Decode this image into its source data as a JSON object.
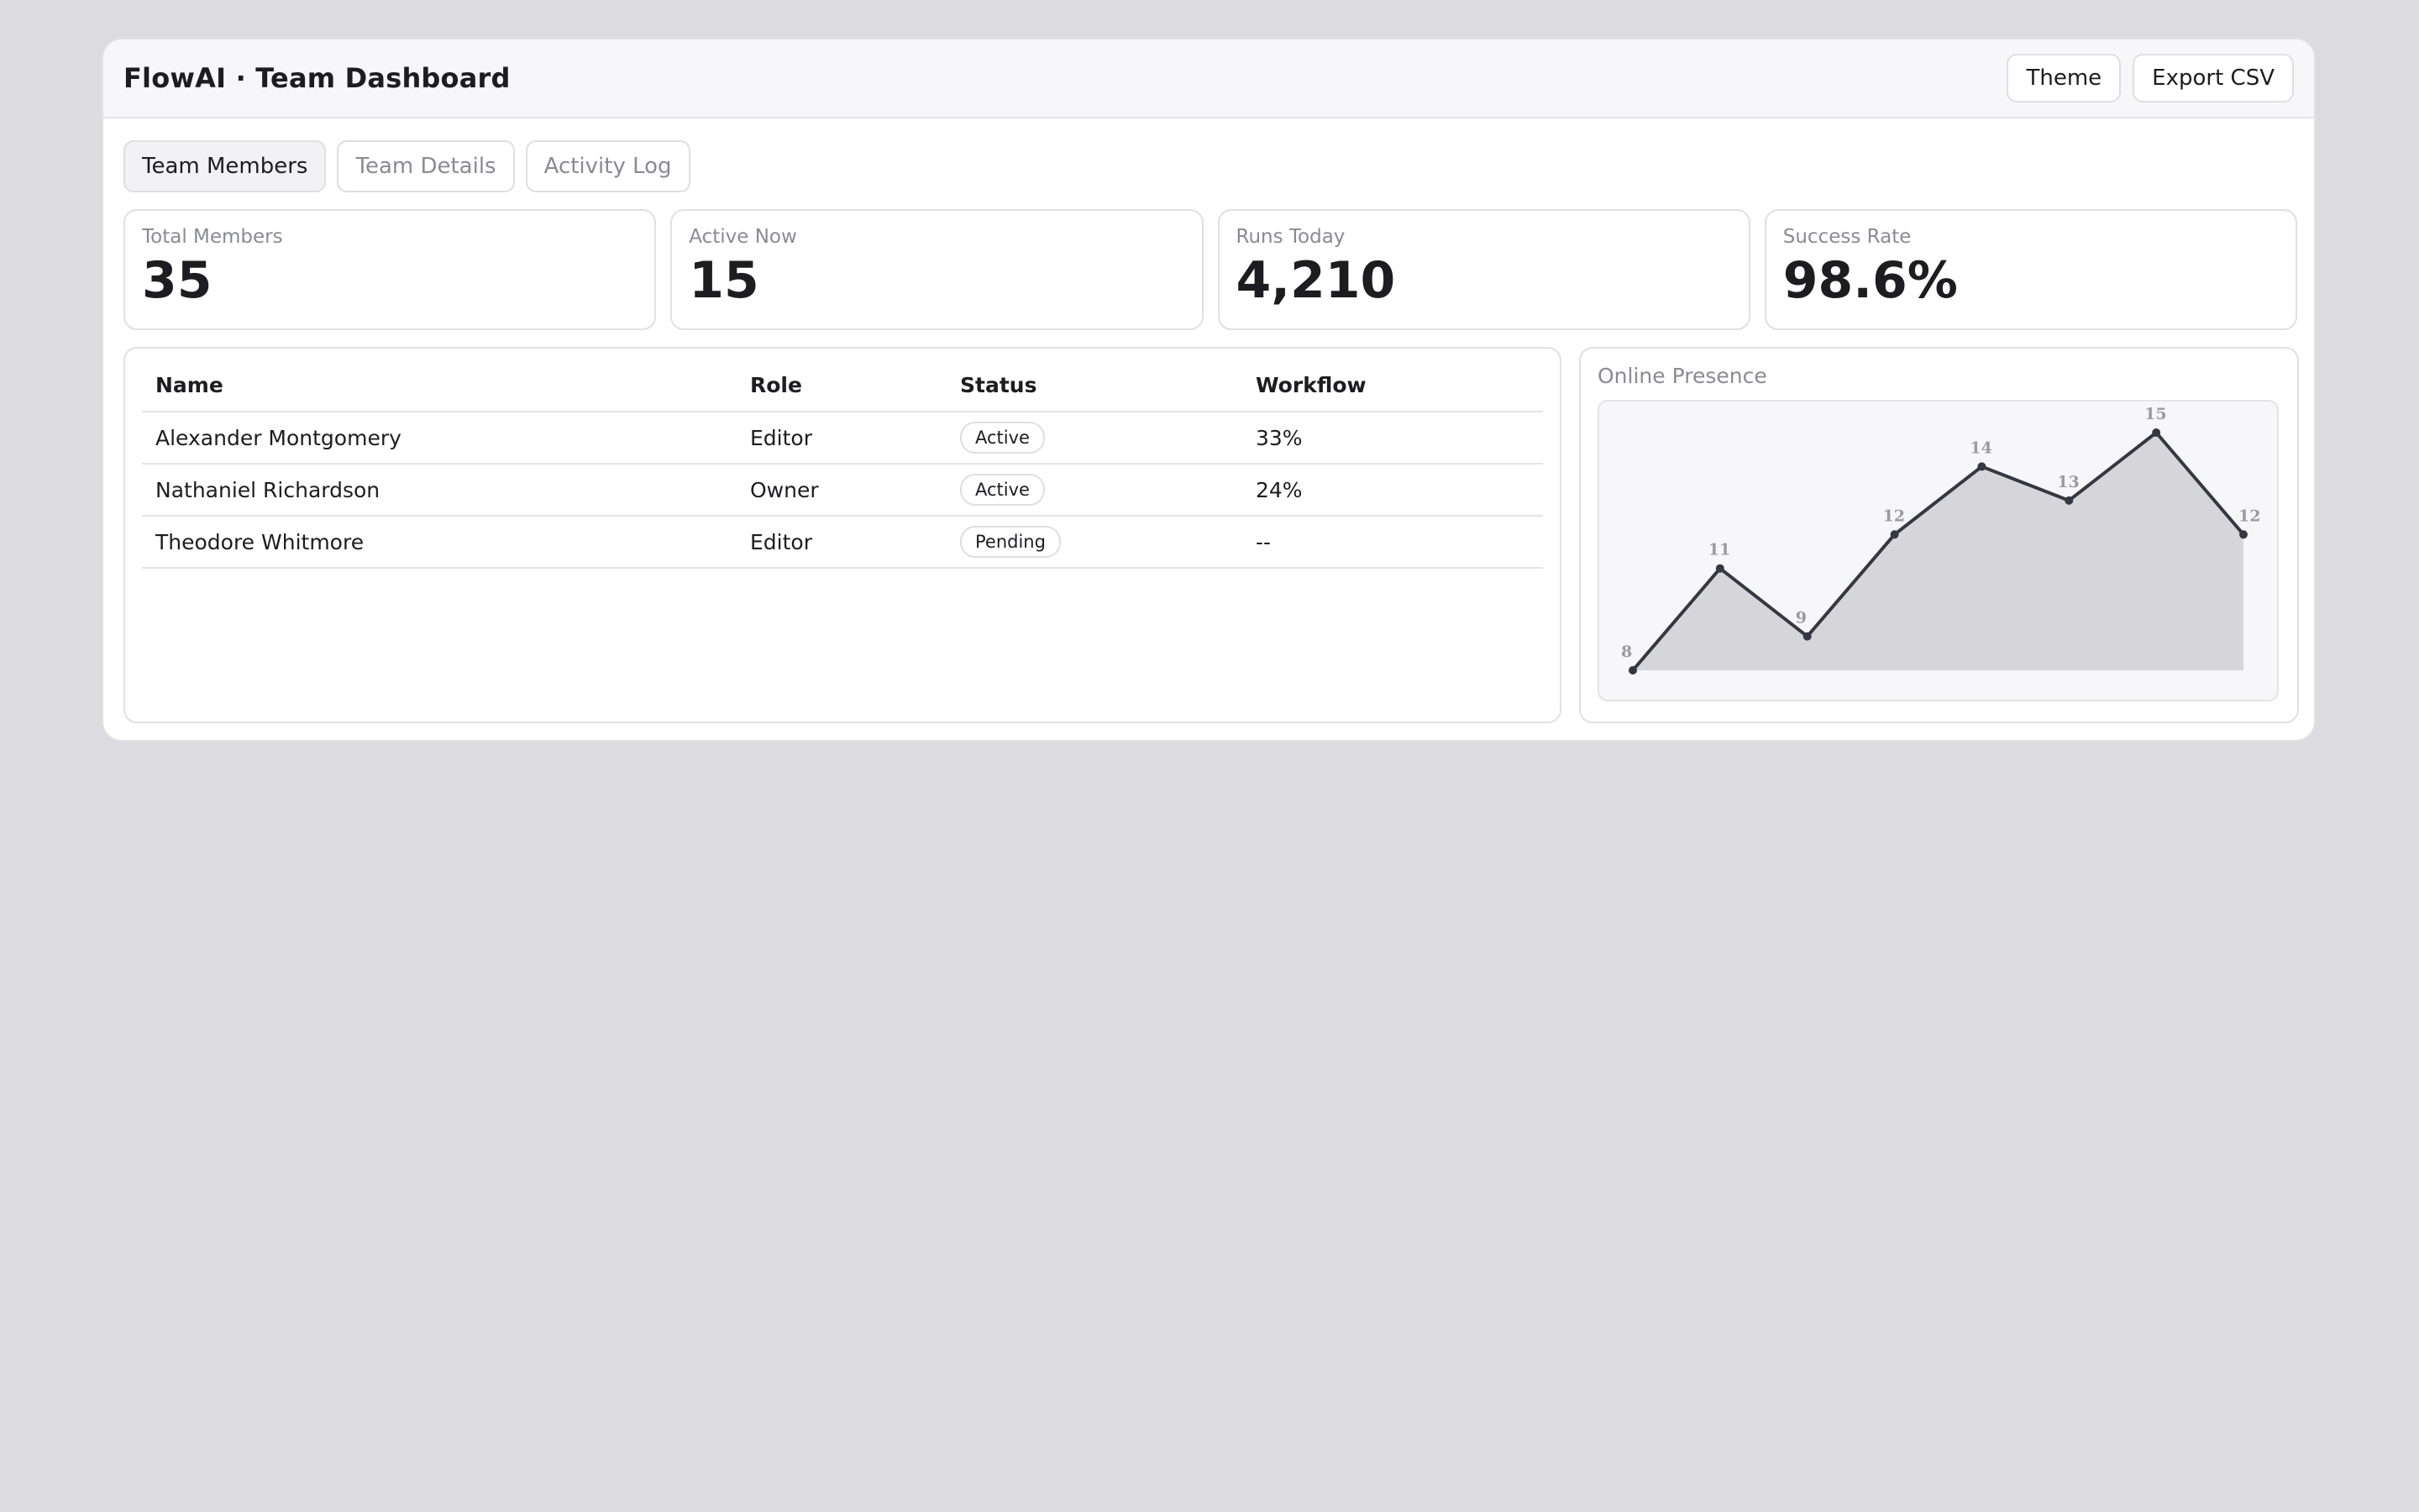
{
  "header": {
    "title": "FlowAI · Team Dashboard",
    "buttons": [
      "Theme",
      "Export CSV"
    ]
  },
  "tabs": [
    {
      "label": "Team Members",
      "active": true
    },
    {
      "label": "Team Details",
      "active": false
    },
    {
      "label": "Activity Log",
      "active": false
    }
  ],
  "stats": [
    {
      "label": "Total Members",
      "value": "35"
    },
    {
      "label": "Active Now",
      "value": "15"
    },
    {
      "label": "Runs Today",
      "value": "4,210"
    },
    {
      "label": "Success Rate",
      "value": "98.6%"
    }
  ],
  "table": {
    "columns": [
      "Name",
      "Role",
      "Status",
      "Workflow"
    ],
    "rows": [
      {
        "name": "Alexander Montgomery",
        "role": "Editor",
        "status": "Active",
        "workflow": "33%"
      },
      {
        "name": "Nathaniel Richardson",
        "role": "Owner",
        "status": "Active",
        "workflow": "24%"
      },
      {
        "name": "Theodore Whitmore",
        "role": "Editor",
        "status": "Pending",
        "workflow": "--"
      }
    ]
  },
  "chart_data": {
    "type": "area",
    "title": "Online Presence",
    "values": [
      8,
      11,
      9,
      12,
      14,
      13,
      15,
      12
    ],
    "ylim": [
      8,
      15
    ],
    "line_color": "#343841",
    "fill_color": "#d6d6da"
  }
}
